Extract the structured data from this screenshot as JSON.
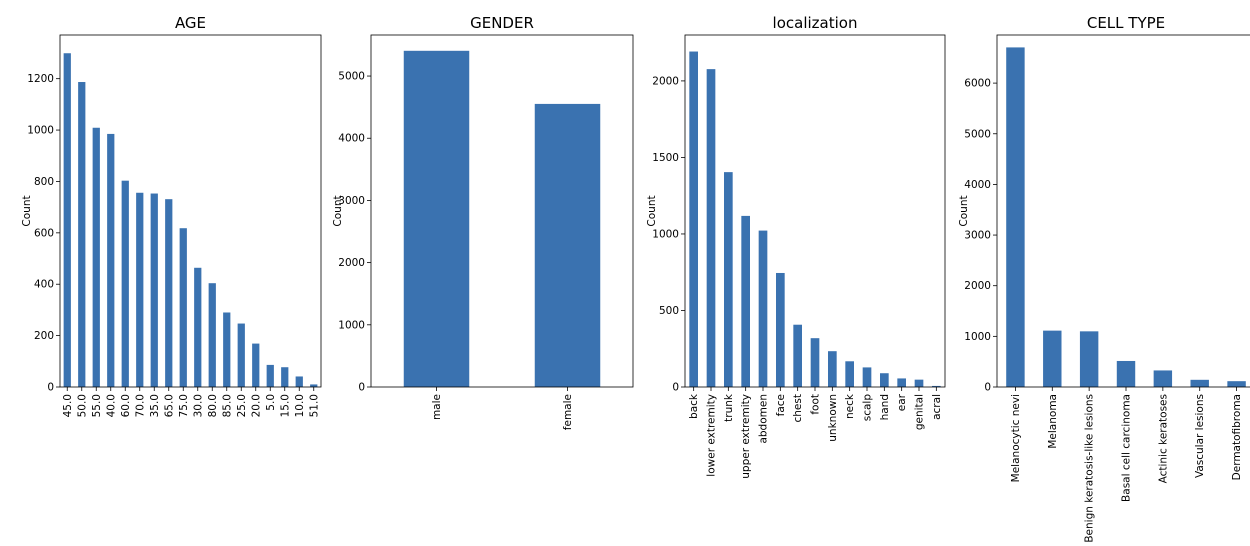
{
  "bar_color": "#3a72b0",
  "chart_data": [
    {
      "type": "bar",
      "title": "AGE",
      "xlabel": "",
      "ylabel": "Count",
      "ylim": [
        0,
        1370
      ],
      "yticks": [
        0,
        200,
        400,
        600,
        800,
        1000,
        1200
      ],
      "categories": [
        "45.0",
        "50.0",
        "55.0",
        "40.0",
        "60.0",
        "70.0",
        "35.0",
        "65.0",
        "75.0",
        "30.0",
        "80.0",
        "85.0",
        "25.0",
        "20.0",
        "5.0",
        "15.0",
        "10.0",
        "51.0"
      ],
      "values": [
        1299,
        1187,
        1009,
        985,
        803,
        756,
        753,
        731,
        618,
        464,
        404,
        290,
        247,
        169,
        86,
        77,
        41,
        10
      ]
    },
    {
      "type": "bar",
      "title": "GENDER",
      "xlabel": "",
      "ylabel": "Count",
      "ylim": [
        0,
        5660
      ],
      "yticks": [
        0,
        1000,
        2000,
        3000,
        4000,
        5000
      ],
      "categories": [
        "male",
        "female"
      ],
      "values": [
        5406,
        4552
      ]
    },
    {
      "type": "bar",
      "title": "localization",
      "xlabel": "",
      "ylabel": "Count",
      "ylim": [
        0,
        2300
      ],
      "yticks": [
        0,
        500,
        1000,
        1500,
        2000
      ],
      "categories": [
        "back",
        "lower extremity",
        "trunk",
        "upper extremity",
        "abdomen",
        "face",
        "chest",
        "foot",
        "unknown",
        "neck",
        "scalp",
        "hand",
        "ear",
        "genital",
        "acral"
      ],
      "values": [
        2192,
        2077,
        1404,
        1118,
        1022,
        745,
        407,
        319,
        234,
        168,
        128,
        90,
        56,
        48,
        7
      ]
    },
    {
      "type": "bar",
      "title": "CELL TYPE",
      "xlabel": "",
      "ylabel": "Count",
      "ylim": [
        0,
        6950
      ],
      "yticks": [
        0,
        1000,
        2000,
        3000,
        4000,
        5000,
        6000
      ],
      "categories": [
        "Melanocytic nevi",
        "Melanoma",
        "Benign keratosis-like lesions",
        "Basal cell carcinoma",
        "Actinic keratoses",
        "Vascular lesions",
        "Dermatofibroma"
      ],
      "values": [
        6705,
        1113,
        1099,
        514,
        327,
        142,
        115
      ]
    }
  ]
}
